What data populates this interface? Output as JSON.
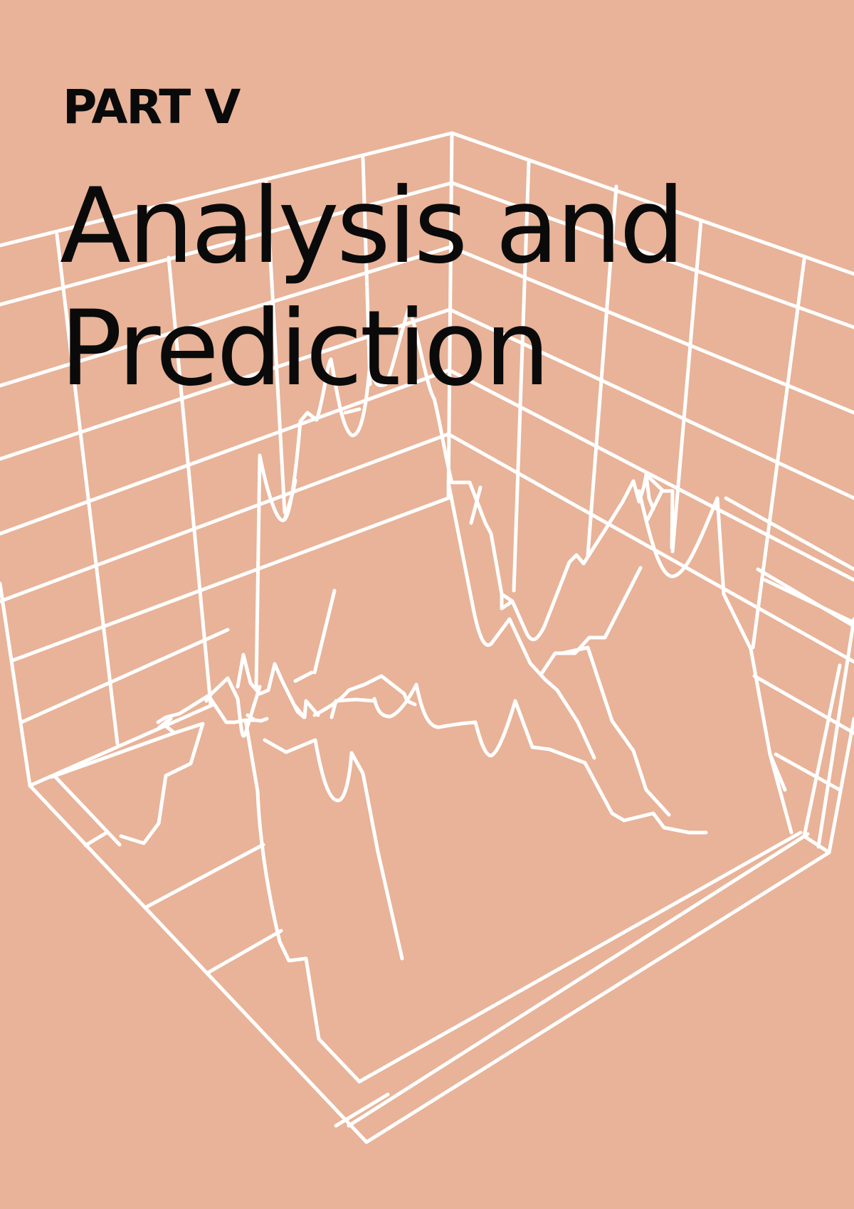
{
  "cover": {
    "part_label": "PART V",
    "title_line1": "Analysis and",
    "title_line2": "Prediction"
  },
  "colors": {
    "background": "#e8b398",
    "lines": "#ffffff",
    "text": "#0a0a0a"
  },
  "illustration": {
    "icon": "3d-wireframe-surface-plot",
    "style": "white line art"
  }
}
